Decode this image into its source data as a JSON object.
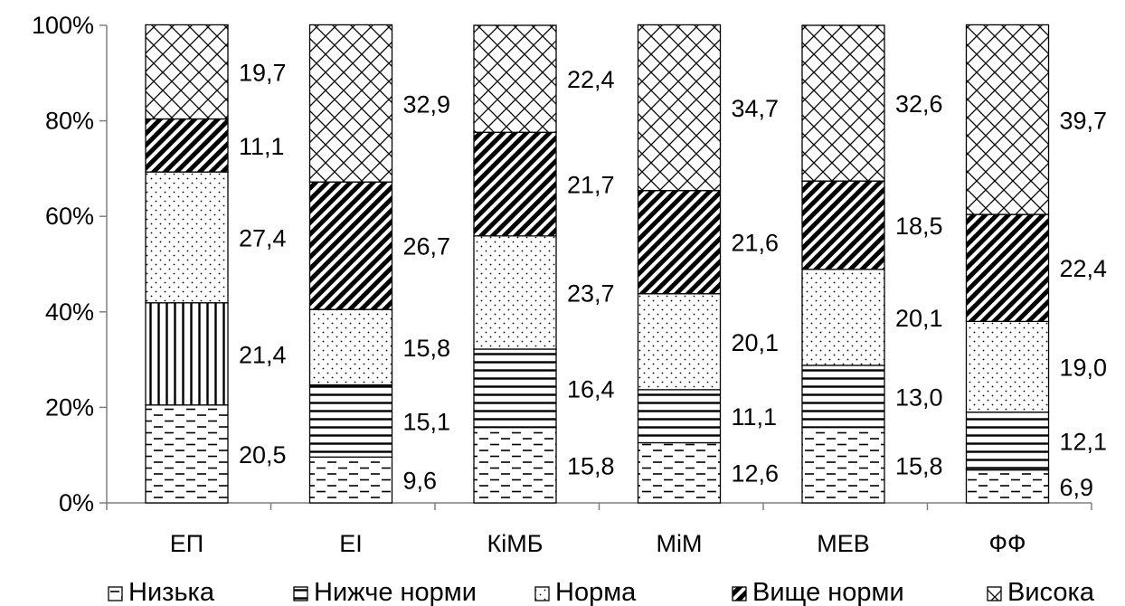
{
  "chart_data": {
    "type": "bar",
    "stacked": true,
    "percent": true,
    "categories": [
      "ЕП",
      "ЕІ",
      "КіМБ",
      "МіМ",
      "МЕВ",
      "ФФ"
    ],
    "y_ticks": [
      "0%",
      "20%",
      "40%",
      "60%",
      "80%",
      "100%"
    ],
    "ylim": [
      0,
      100
    ],
    "grid": false,
    "legend_position": "bottom",
    "series": [
      {
        "name": "Низька",
        "pattern": "dashes",
        "values": [
          20.5,
          9.6,
          15.8,
          12.6,
          15.8,
          6.9
        ],
        "labels": [
          "20,5",
          "9,6",
          "15,8",
          "12,6",
          "15,8",
          "6,9"
        ]
      },
      {
        "name": "Нижче норми",
        "pattern": "horizontal-lines",
        "values": [
          21.4,
          15.1,
          16.4,
          11.1,
          13.0,
          12.1
        ],
        "labels": [
          "21,4",
          "15,1",
          "16,4",
          "11,1",
          "13,0",
          "12,1"
        ]
      },
      {
        "name": "Норма",
        "pattern": "dots",
        "values": [
          27.4,
          15.8,
          23.7,
          20.1,
          20.1,
          19.0
        ],
        "labels": [
          "27,4",
          "15,8",
          "23,7",
          "20,1",
          "20,1",
          "19,0"
        ]
      },
      {
        "name": "Вище норми",
        "pattern": "diagonal-hatch",
        "values": [
          11.1,
          26.7,
          21.7,
          21.6,
          18.5,
          22.4
        ],
        "labels": [
          "11,1",
          "26,7",
          "21,7",
          "21,6",
          "18,5",
          "22,4"
        ]
      },
      {
        "name": "Висока",
        "pattern": "crosshatch",
        "values": [
          19.7,
          32.9,
          22.4,
          34.7,
          32.6,
          39.7
        ],
        "labels": [
          "19,7",
          "32,9",
          "22,4",
          "34,7",
          "32,6",
          "39,7"
        ]
      }
    ]
  }
}
